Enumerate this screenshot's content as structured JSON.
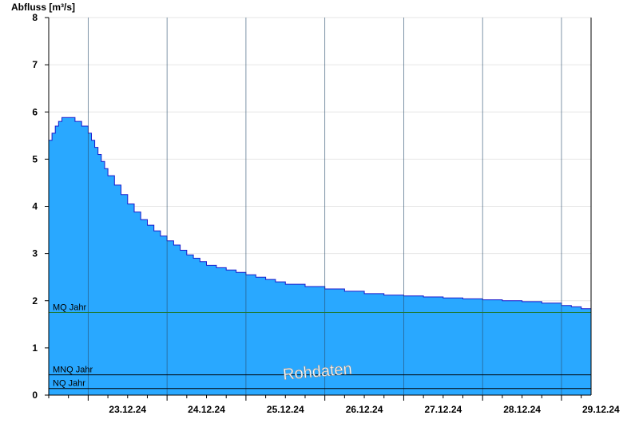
{
  "chart_data": {
    "type": "area",
    "ylabel": "Abfluss [m³/s]",
    "ylim": [
      0,
      8
    ],
    "yticks": [
      "0",
      "1",
      "2",
      "3",
      "4",
      "5",
      "6",
      "7",
      "8"
    ],
    "xlim": [
      "22.12.24 12:00",
      "29.12.24 09:00"
    ],
    "day_boundaries": [
      "23.12.24 00:00",
      "24.12.24 00:00",
      "25.12.24 00:00",
      "26.12.24 00:00",
      "27.12.24 00:00",
      "28.12.24 00:00",
      "29.12.24 00:00"
    ],
    "xtick_labels": [
      "23.12.24",
      "24.12.24",
      "25.12.24",
      "26.12.24",
      "27.12.24",
      "28.12.24",
      "29.12.24"
    ],
    "grid": true,
    "series": [
      {
        "fill_color": "#29a8ff",
        "line_color": "#1a1acc",
        "x": [
          "22.12.24 12:00",
          "22.12.24 13:00",
          "22.12.24 14:00",
          "22.12.24 15:00",
          "22.12.24 16:00",
          "22.12.24 17:00",
          "22.12.24 18:00",
          "22.12.24 19:00",
          "22.12.24 20:00",
          "22.12.24 22:00",
          "23.12.24 00:00",
          "23.12.24 01:00",
          "23.12.24 02:00",
          "23.12.24 03:00",
          "23.12.24 04:00",
          "23.12.24 05:00",
          "23.12.24 06:00",
          "23.12.24 08:00",
          "23.12.24 10:00",
          "23.12.24 12:00",
          "23.12.24 14:00",
          "23.12.24 16:00",
          "23.12.24 18:00",
          "23.12.24 20:00",
          "23.12.24 22:00",
          "24.12.24 00:00",
          "24.12.24 02:00",
          "24.12.24 04:00",
          "24.12.24 06:00",
          "24.12.24 08:00",
          "24.12.24 10:00",
          "24.12.24 12:00",
          "24.12.24 15:00",
          "24.12.24 18:00",
          "24.12.24 21:00",
          "25.12.24 00:00",
          "25.12.24 03:00",
          "25.12.24 06:00",
          "25.12.24 09:00",
          "25.12.24 12:00",
          "25.12.24 18:00",
          "26.12.24 00:00",
          "26.12.24 06:00",
          "26.12.24 12:00",
          "26.12.24 18:00",
          "27.12.24 00:00",
          "27.12.24 06:00",
          "27.12.24 12:00",
          "27.12.24 18:00",
          "28.12.24 00:00",
          "28.12.24 06:00",
          "28.12.24 12:00",
          "28.12.24 18:00",
          "29.12.24 00:00",
          "29.12.24 03:00",
          "29.12.24 06:00",
          "29.12.24 09:00"
        ],
        "y": [
          5.4,
          5.55,
          5.7,
          5.8,
          5.88,
          5.88,
          5.88,
          5.88,
          5.8,
          5.7,
          5.55,
          5.4,
          5.25,
          5.1,
          4.95,
          4.8,
          4.65,
          4.45,
          4.25,
          4.05,
          3.88,
          3.72,
          3.6,
          3.48,
          3.37,
          3.27,
          3.18,
          3.07,
          2.97,
          2.9,
          2.83,
          2.75,
          2.7,
          2.65,
          2.6,
          2.55,
          2.5,
          2.45,
          2.4,
          2.35,
          2.3,
          2.25,
          2.2,
          2.15,
          2.12,
          2.1,
          2.08,
          2.06,
          2.04,
          2.02,
          2.0,
          1.98,
          1.95,
          1.9,
          1.87,
          1.83,
          1.8
        ]
      }
    ],
    "reference_lines": [
      {
        "label": "MQ Jahr",
        "value": 1.75,
        "color": "#1f7a3a"
      },
      {
        "label": "MNQ Jahr",
        "value": 0.43,
        "color": "#000000"
      },
      {
        "label": "NQ Jahr",
        "value": 0.14,
        "color": "#000000"
      }
    ],
    "annotation": "Rohdaten"
  }
}
